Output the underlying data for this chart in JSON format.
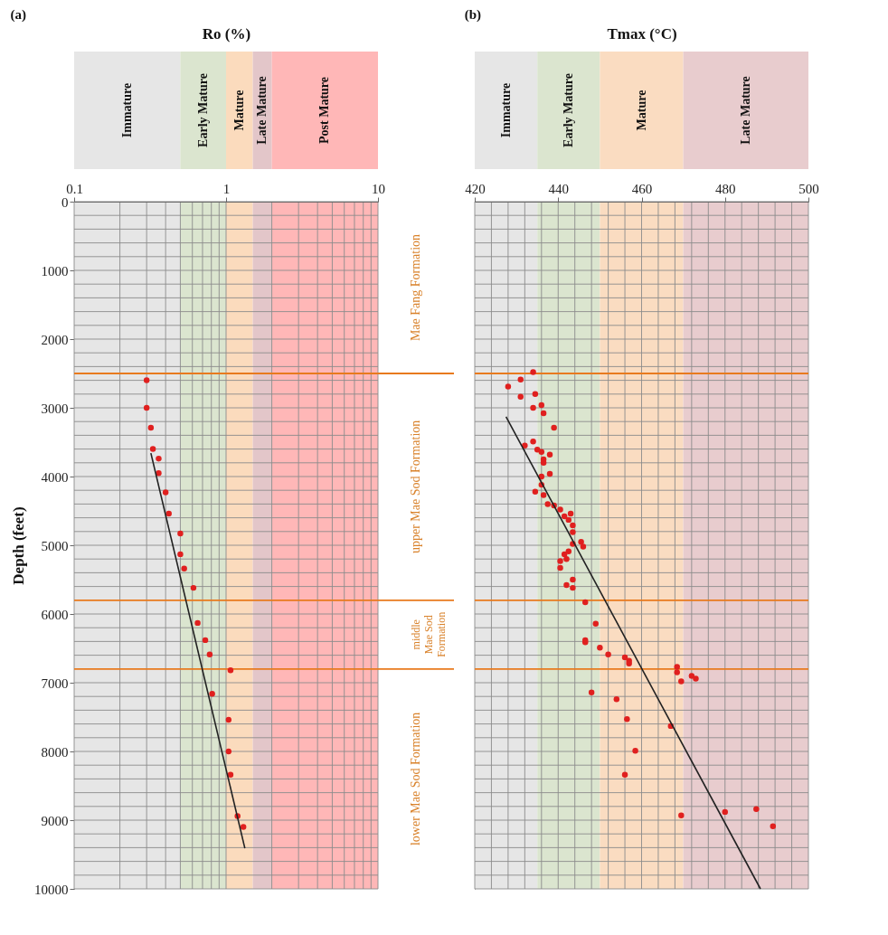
{
  "chart_data": [
    {
      "type": "scatter",
      "title": "(a)",
      "xlabel": "Ro (%)",
      "ylabel": "Depth (feet)",
      "log": "x",
      "xlim": [
        0.1,
        10
      ],
      "xticks": [
        0.1,
        {
          "value": 0.2,
          "label": null
        },
        {
          "value": 0.3,
          "label": null
        },
        {
          "value": 0.4,
          "label": null
        },
        {
          "value": 0.5,
          "label": null
        },
        {
          "value": 0.6,
          "label": null
        },
        {
          "value": 0.7,
          "label": null
        },
        {
          "value": 0.8,
          "label": null
        },
        {
          "value": 0.9,
          "label": null
        },
        1,
        {
          "value": 2,
          "label": null
        },
        {
          "value": 3,
          "label": null
        },
        {
          "value": 4,
          "label": null
        },
        {
          "value": 5,
          "label": null
        },
        {
          "value": 6,
          "label": null
        },
        {
          "value": 7,
          "label": null
        },
        {
          "value": 8,
          "label": null
        },
        {
          "value": 9,
          "label": null
        },
        10
      ],
      "ylim": [
        10000,
        0
      ],
      "yticks": [
        0,
        {
          "value": 200,
          "label": null
        },
        {
          "value": 400,
          "label": null
        },
        {
          "value": 600,
          "label": null
        },
        {
          "value": 800,
          "label": null
        },
        1000,
        {
          "value": 1200,
          "label": null
        },
        {
          "value": 1400,
          "label": null
        },
        {
          "value": 1600,
          "label": null
        },
        {
          "value": 1800,
          "label": null
        },
        2000,
        {
          "value": 2200,
          "label": null
        },
        {
          "value": 2400,
          "label": null
        },
        {
          "value": 2600,
          "label": null
        },
        {
          "value": 2800,
          "label": null
        },
        3000,
        {
          "value": 3200,
          "label": null
        },
        {
          "value": 3400,
          "label": null
        },
        {
          "value": 3600,
          "label": null
        },
        {
          "value": 3800,
          "label": null
        },
        4000,
        {
          "value": 4200,
          "label": null
        },
        {
          "value": 4400,
          "label": null
        },
        {
          "value": 4600,
          "label": null
        },
        {
          "value": 4800,
          "label": null
        },
        5000,
        {
          "value": 5200,
          "label": null
        },
        {
          "value": 5400,
          "label": null
        },
        {
          "value": 5600,
          "label": null
        },
        6000,
        {
          "value": 6200,
          "label": null
        },
        {
          "value": 6400,
          "label": null
        },
        {
          "value": 6600,
          "label": null
        },
        7000,
        {
          "value": 7200,
          "label": null
        },
        {
          "value": 7400,
          "label": null
        },
        {
          "value": 7600,
          "label": null
        },
        {
          "value": 7800,
          "label": null
        },
        8000,
        {
          "value": 8200,
          "label": null
        },
        {
          "value": 8400,
          "label": null
        },
        {
          "value": 8600,
          "label": null
        },
        {
          "value": 8800,
          "label": null
        },
        9000,
        {
          "value": 9200,
          "label": null
        },
        {
          "value": 9400,
          "label": null
        },
        {
          "value": 9600,
          "label": null
        },
        {
          "value": 9800,
          "label": null
        },
        10000
      ],
      "grid": true,
      "bands": [
        {
          "axis": "x",
          "from": 0.1,
          "to": 0.5,
          "label": "Immature",
          "color": "#e6e6e6"
        },
        {
          "axis": "x",
          "from": 0.5,
          "to": 1,
          "label": "Early Mature",
          "color": "#dbe5cf"
        },
        {
          "axis": "x",
          "from": 1,
          "to": 1.5,
          "label": "Mature",
          "color": "#fbdbbd"
        },
        {
          "axis": "x",
          "from": 1.5,
          "to": 2,
          "label": "Late Mature",
          "color": "#e3c6c9"
        },
        {
          "axis": "x",
          "from": 2,
          "to": 10,
          "label": "Post Mature",
          "color": "#ffb7b7"
        }
      ],
      "ref_lines": [
        {
          "axis": "y",
          "value": 2500,
          "color": "#e87a1e"
        },
        {
          "axis": "y",
          "value": 5800,
          "color": "#e87a1e"
        },
        {
          "axis": "y",
          "value": 6800,
          "color": "#e87a1e"
        }
      ],
      "annotations": [
        "Mae Fang Formation",
        "upper Mae Sod Formation",
        "middle Mae Sod Formation",
        "lower Mae Sod Formation"
      ],
      "series": [
        {
          "marker": "circle",
          "color": "#e0201f",
          "x": [
            0.3,
            0.3,
            0.32,
            0.33,
            0.36,
            0.36,
            0.4,
            0.42,
            0.5,
            0.5,
            0.53,
            0.61,
            0.65,
            0.73,
            0.78,
            1.07,
            0.81,
            1.04,
            1.04,
            1.07,
            1.19,
            1.3
          ],
          "values": [
            2600,
            3000,
            3290,
            3600,
            3740,
            3950,
            4230,
            4540,
            4830,
            5130,
            5340,
            5620,
            6130,
            6380,
            6590,
            6820,
            7160,
            7540,
            8000,
            8340,
            8940,
            9100
          ]
        },
        {
          "type": "line",
          "marker": "none",
          "color": "#222222",
          "x": [
            0.32,
            1.33
          ],
          "values": [
            3660,
            9410
          ]
        }
      ]
    },
    {
      "type": "scatter",
      "title": "(b)",
      "xlabel": "Tmax (°C)",
      "xlim": [
        420,
        500
      ],
      "xticks": [
        420,
        {
          "value": 424,
          "label": null
        },
        {
          "value": 428,
          "label": null
        },
        {
          "value": 432,
          "label": null
        },
        {
          "value": 436,
          "label": null
        },
        440,
        {
          "value": 444,
          "label": null
        },
        {
          "value": 448,
          "label": null
        },
        {
          "value": 452,
          "label": null
        },
        {
          "value": 456,
          "label": null
        },
        460,
        {
          "value": 464,
          "label": null
        },
        {
          "value": 468,
          "label": null
        },
        {
          "value": 472,
          "label": null
        },
        {
          "value": 476,
          "label": null
        },
        480,
        {
          "value": 484,
          "label": null
        },
        {
          "value": 488,
          "label": null
        },
        {
          "value": 492,
          "label": null
        },
        {
          "value": 496,
          "label": null
        },
        500
      ],
      "ylim": [
        10000,
        0
      ],
      "yticks": [
        0,
        {
          "value": 200,
          "label": null
        },
        {
          "value": 400,
          "label": null
        },
        {
          "value": 600,
          "label": null
        },
        {
          "value": 800,
          "label": null
        },
        1000,
        {
          "value": 1200,
          "label": null
        },
        {
          "value": 1400,
          "label": null
        },
        {
          "value": 1600,
          "label": null
        },
        {
          "value": 1800,
          "label": null
        },
        2000,
        {
          "value": 2200,
          "label": null
        },
        {
          "value": 2400,
          "label": null
        },
        {
          "value": 2600,
          "label": null
        },
        {
          "value": 2800,
          "label": null
        },
        3000,
        {
          "value": 3200,
          "label": null
        },
        {
          "value": 3400,
          "label": null
        },
        {
          "value": 3600,
          "label": null
        },
        {
          "value": 3800,
          "label": null
        },
        4000,
        {
          "value": 4200,
          "label": null
        },
        {
          "value": 4400,
          "label": null
        },
        {
          "value": 4600,
          "label": null
        },
        {
          "value": 4800,
          "label": null
        },
        5000,
        {
          "value": 5200,
          "label": null
        },
        {
          "value": 5400,
          "label": null
        },
        {
          "value": 5600,
          "label": null
        },
        6000,
        {
          "value": 6200,
          "label": null
        },
        {
          "value": 6400,
          "label": null
        },
        {
          "value": 6600,
          "label": null
        },
        7000,
        {
          "value": 7200,
          "label": null
        },
        {
          "value": 7400,
          "label": null
        },
        {
          "value": 7600,
          "label": null
        },
        {
          "value": 7800,
          "label": null
        },
        8000,
        {
          "value": 8200,
          "label": null
        },
        {
          "value": 8400,
          "label": null
        },
        {
          "value": 8600,
          "label": null
        },
        {
          "value": 8800,
          "label": null
        },
        9000,
        {
          "value": 9200,
          "label": null
        },
        {
          "value": 9400,
          "label": null
        },
        {
          "value": 9600,
          "label": null
        },
        {
          "value": 9800,
          "label": null
        },
        10000
      ],
      "tick_labels": "x",
      "grid": true,
      "bands": [
        {
          "axis": "x",
          "from": 420,
          "to": 435,
          "label": "Immature",
          "color": "#e6e6e6"
        },
        {
          "axis": "x",
          "from": 435,
          "to": 450,
          "label": "Early Mature",
          "color": "#dbe5cf"
        },
        {
          "axis": "x",
          "from": 450,
          "to": 470,
          "label": "Mature",
          "color": "#fadcc1"
        },
        {
          "axis": "x",
          "from": 470,
          "to": 500,
          "label": "Late Mature",
          "color": "#e8ccce"
        }
      ],
      "ref_lines": [
        {
          "axis": "y",
          "value": 2500,
          "color": "#e87a1e"
        },
        {
          "axis": "y",
          "value": 5800,
          "color": "#e87a1e"
        },
        {
          "axis": "y",
          "value": 6800,
          "color": "#e87a1e"
        }
      ],
      "series": [
        {
          "marker": "circle",
          "color": "#e0201f",
          "x": [
            434,
            431,
            428,
            431,
            434.5,
            434,
            436,
            436.5,
            439,
            434,
            432,
            435,
            436,
            438,
            436.5,
            436.5,
            438,
            436,
            436,
            434.5,
            436.5,
            437.5,
            439,
            440.5,
            441.5,
            443,
            442.5,
            443.5,
            443.5,
            443.5,
            445.5,
            446,
            442.5,
            441.5,
            442,
            440.5,
            440.5,
            443.5,
            442,
            443.5,
            446.5,
            449,
            446.5,
            446.5,
            450,
            452,
            456,
            457,
            457,
            468.5,
            468.5,
            469.5,
            472,
            473,
            448,
            454,
            456.5,
            467,
            458.5,
            456,
            469.5,
            480,
            487.5,
            491.5
          ],
          "values": [
            2480,
            2590,
            2690,
            2840,
            2800,
            3000,
            2960,
            3080,
            3290,
            3490,
            3550,
            3610,
            3640,
            3680,
            3750,
            3800,
            3960,
            4000,
            4120,
            4220,
            4270,
            4400,
            4420,
            4480,
            4580,
            4540,
            4630,
            4710,
            4810,
            4980,
            4950,
            5020,
            5090,
            5130,
            5200,
            5230,
            5330,
            5500,
            5580,
            5620,
            5830,
            6140,
            6410,
            6380,
            6490,
            6590,
            6630,
            6680,
            6720,
            6770,
            6850,
            6980,
            6900,
            6940,
            7140,
            7240,
            7530,
            7630,
            7990,
            8340,
            8930,
            8880,
            8840,
            9090
          ]
        },
        {
          "type": "line",
          "marker": "none",
          "color": "#222222",
          "x": [
            427.5,
            488.5
          ],
          "values": [
            3130,
            10000
          ]
        }
      ]
    }
  ]
}
